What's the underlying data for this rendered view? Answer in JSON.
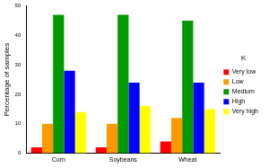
{
  "chart_data": {
    "type": "bar",
    "y_label": "Percentage of samples",
    "categories": [
      "Corn",
      "Soybeans",
      "Wheat"
    ],
    "series": [
      {
        "name": "Very low",
        "color": "#ff0000",
        "values": [
          2,
          2,
          4
        ]
      },
      {
        "name": "Low",
        "color": "#ff9900",
        "values": [
          10,
          10,
          12
        ]
      },
      {
        "name": "Medium",
        "color": "#009900",
        "values": [
          47,
          47,
          45
        ]
      },
      {
        "name": "High",
        "color": "#0000ff",
        "values": [
          28,
          24,
          24
        ]
      },
      {
        "name": "Very high",
        "color": "#ffff00",
        "values": [
          14,
          16,
          15
        ]
      }
    ],
    "ylim": [
      0,
      50
    ],
    "yticks": [
      0,
      10,
      20,
      30,
      40,
      50
    ],
    "grid": false,
    "legend": "right",
    "legend_title": "K"
  }
}
